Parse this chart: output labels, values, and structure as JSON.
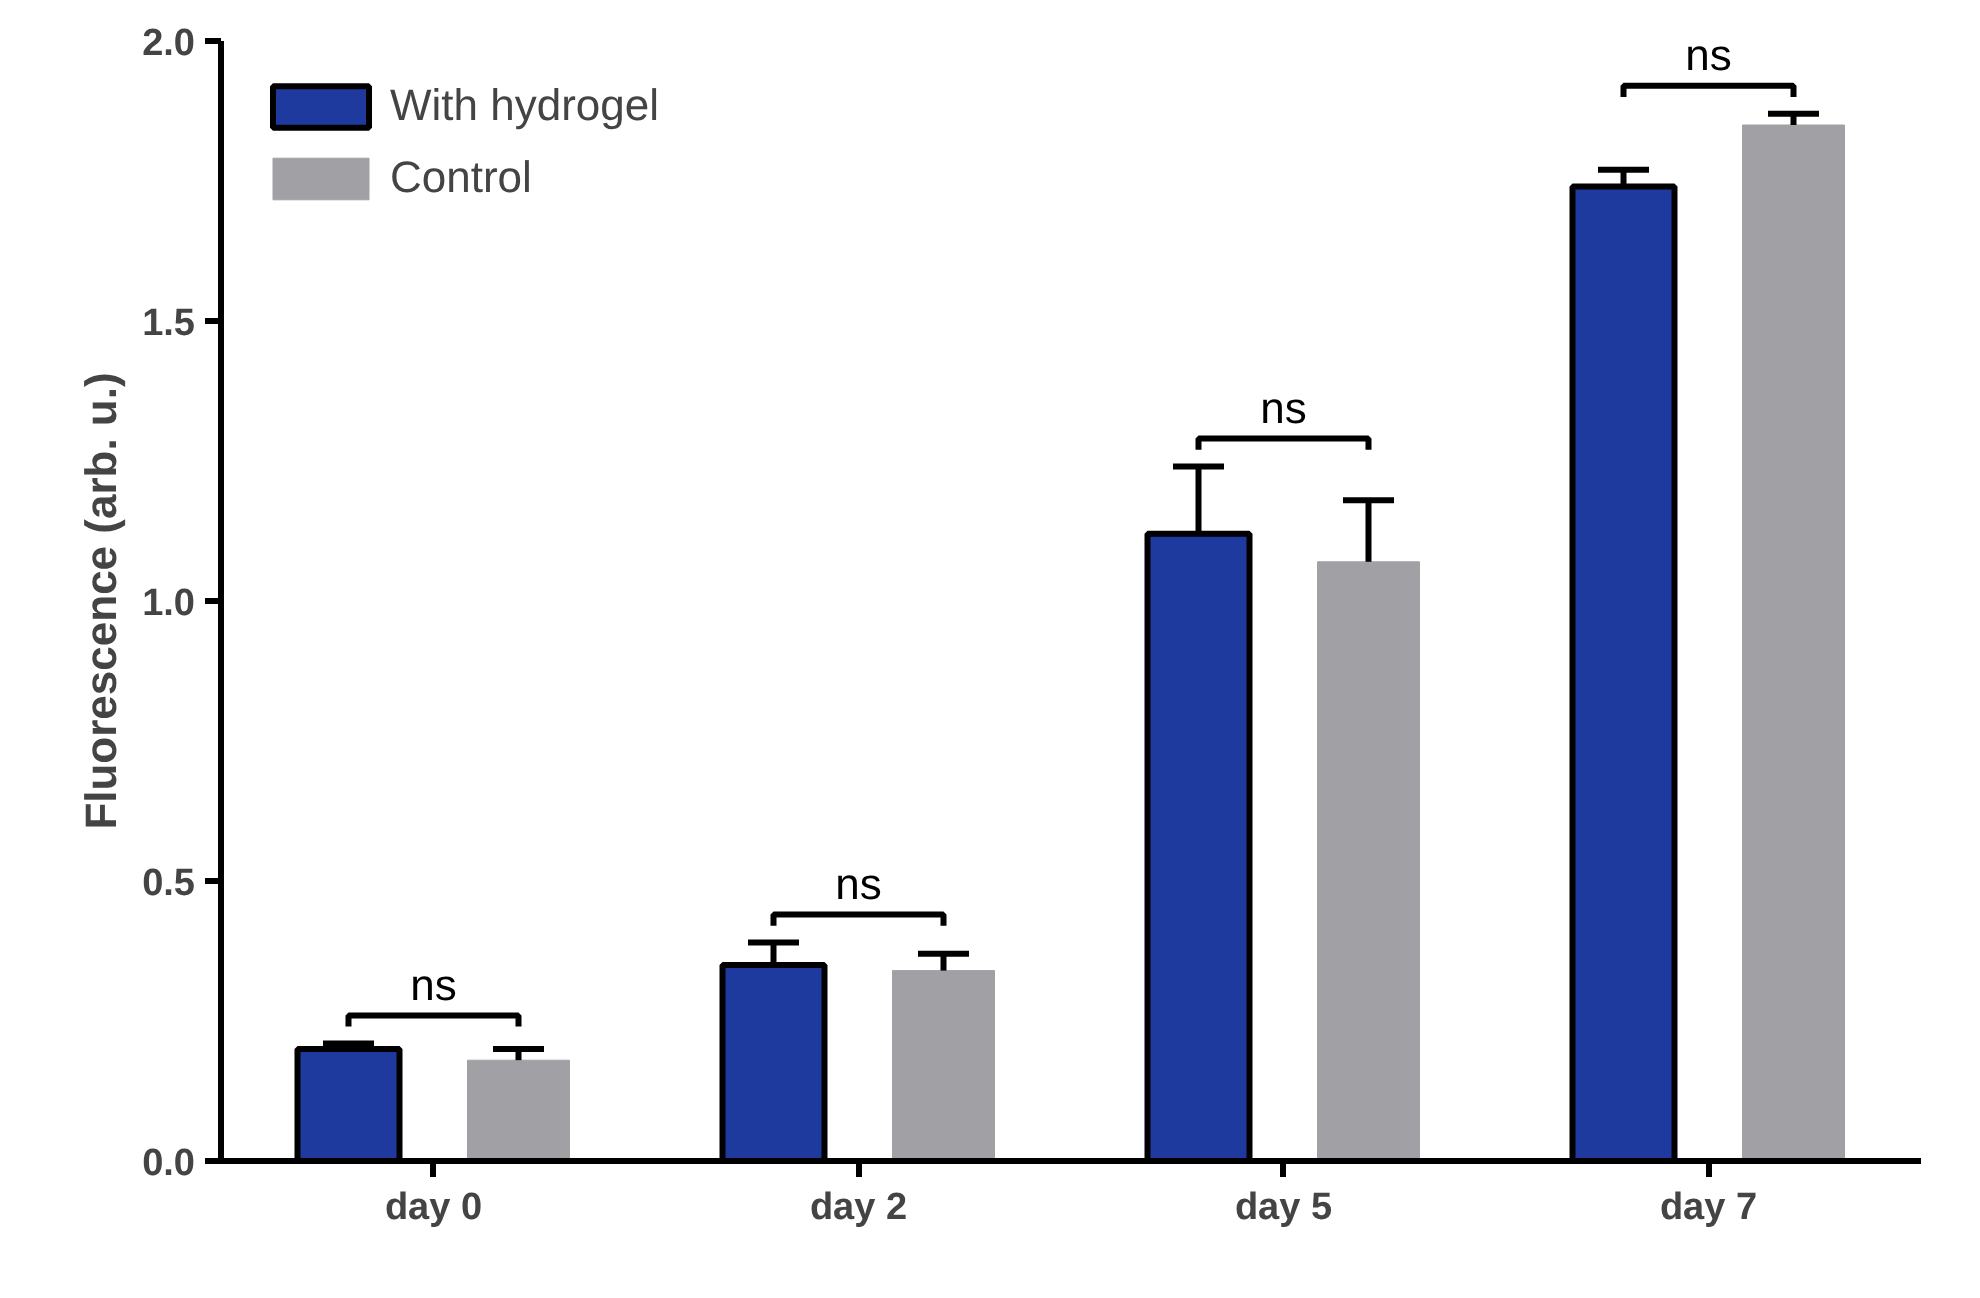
{
  "chart_data": {
    "type": "bar",
    "ylabel": "Fluorescence (arb. u.)",
    "categories": [
      "day 0",
      "day 2",
      "day 5",
      "day 7"
    ],
    "series": [
      {
        "name": "With hydrogel",
        "color": "#1f3a9e",
        "values": [
          0.2,
          0.35,
          1.12,
          1.74
        ],
        "errors": [
          [
            0.2,
            0.21
          ],
          [
            0.35,
            0.39
          ],
          [
            1.12,
            1.24
          ],
          [
            1.74,
            1.77
          ]
        ]
      },
      {
        "name": "Control",
        "color": "#a1a0a5",
        "values": [
          0.18,
          0.34,
          1.07,
          1.85
        ],
        "errors": [
          [
            0.18,
            0.2
          ],
          [
            0.34,
            0.37
          ],
          [
            1.07,
            1.18
          ],
          [
            1.85,
            1.87
          ]
        ]
      }
    ],
    "ylim": [
      0,
      2.0
    ],
    "yticks": [
      {
        "value": 0,
        "label": "0.0"
      },
      {
        "value": 0.5,
        "label": "0.5"
      },
      {
        "value": 1.0,
        "label": "1.0"
      },
      {
        "value": 1.5,
        "label": "1.5"
      },
      {
        "value": 2.0,
        "label": "2.0"
      }
    ],
    "grid": false,
    "legend": "top left",
    "annotations": [
      "ns",
      "ns",
      "ns",
      "ns"
    ]
  }
}
